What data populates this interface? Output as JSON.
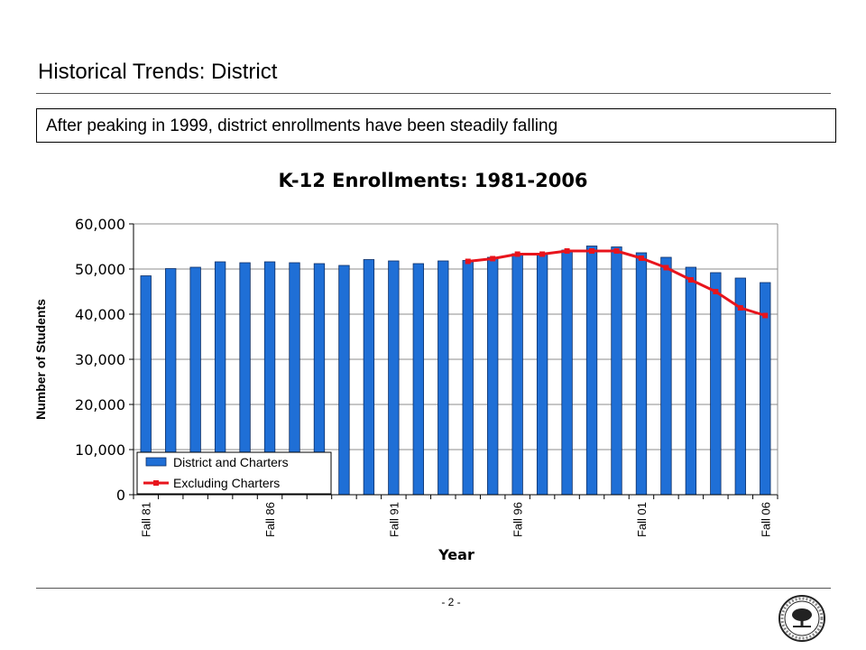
{
  "slide": {
    "title": "Historical Trends: District",
    "callout": "After peaking in 1999, district enrollments have been steadily falling",
    "page_number": "- 2 -"
  },
  "colors": {
    "bar_fill": "#1f6fd6",
    "line": "#e8141c",
    "axis": "#000000",
    "gridline": "#8c8c8c"
  },
  "chart_data": {
    "type": "bar",
    "title": "K-12 Enrollments: 1981-2006",
    "xlabel": "Year",
    "ylabel": "Number of Students",
    "ylim": [
      0,
      60000
    ],
    "yticks": [
      "0",
      "10,000",
      "20,000",
      "30,000",
      "40,000",
      "50,000",
      "60,000"
    ],
    "grid": true,
    "legend_position": "bottom-left",
    "categories": [
      "Fall 81",
      "Fall 82",
      "Fall 83",
      "Fall 84",
      "Fall 85",
      "Fall 86",
      "Fall 87",
      "Fall 88",
      "Fall 89",
      "Fall 90",
      "Fall 91",
      "Fall 92",
      "Fall 93",
      "Fall 94",
      "Fall 95",
      "Fall 96",
      "Fall 97",
      "Fall 98",
      "Fall 99",
      "Fall 00",
      "Fall 01",
      "Fall 02",
      "Fall 03",
      "Fall 04",
      "Fall 05",
      "Fall 06"
    ],
    "shown_tick_labels": [
      "Fall 81",
      "",
      "",
      "",
      "",
      "Fall 86",
      "",
      "",
      "",
      "",
      "Fall 91",
      "",
      "",
      "",
      "",
      "Fall 96",
      "",
      "",
      "",
      "",
      "Fall 01",
      "",
      "",
      "",
      "",
      "Fall 06"
    ],
    "series": [
      {
        "name": "District and Charters",
        "kind": "bar",
        "values": [
          48500,
          50100,
          50400,
          51600,
          51400,
          51600,
          51400,
          51200,
          50800,
          52100,
          51800,
          51200,
          51800,
          51900,
          52600,
          53400,
          53500,
          54200,
          55100,
          54900,
          53600,
          52600,
          50400,
          49200,
          48000,
          47000
        ]
      },
      {
        "name": "Excluding Charters",
        "kind": "line",
        "values": [
          null,
          null,
          null,
          null,
          null,
          null,
          null,
          null,
          null,
          null,
          null,
          null,
          null,
          51700,
          52300,
          53300,
          53300,
          54000,
          54000,
          54000,
          52400,
          50300,
          47600,
          45000,
          41400,
          39700
        ]
      }
    ]
  }
}
